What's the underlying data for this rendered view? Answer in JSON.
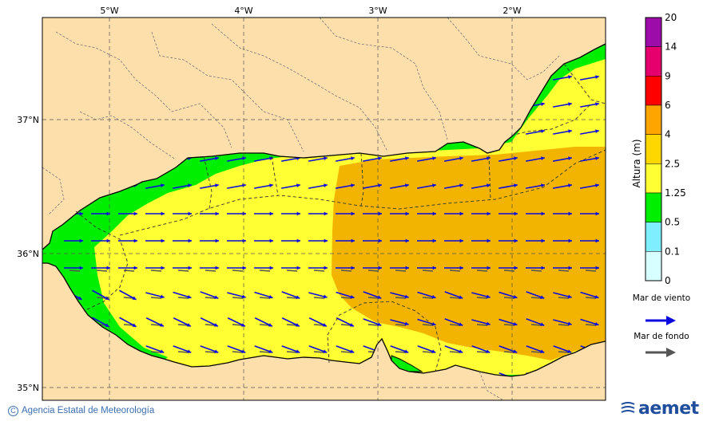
{
  "map": {
    "lon_labels": [
      "5°W",
      "4°W",
      "3°W",
      "2°W"
    ],
    "lat_labels": [
      "37°N",
      "36°N",
      "35°N"
    ],
    "wave_height_levels": [
      {
        "label": "1.25",
        "color": "#ffff33"
      },
      {
        "label": "2.5",
        "color": "#f2b400"
      }
    ]
  },
  "colorbar": {
    "title": "Altura (m)",
    "ticks": [
      "20",
      "14",
      "9",
      "6",
      "4",
      "2.5",
      "1.25",
      "0.5",
      "0.1",
      "0"
    ],
    "colors": [
      "#9c0ca8",
      "#e6006e",
      "#ff0000",
      "#ffa500",
      "#ffd700",
      "#ffff33",
      "#00ee00",
      "#7fefff",
      "#d8ffff"
    ]
  },
  "legend": {
    "wind_sea_label": "Mar de viento",
    "swell_label": "Mar de fondo",
    "wind_color": "#0a0ae0",
    "swell_color": "#555555"
  },
  "footer": {
    "credit": "Agencia Estatal de Meteorología",
    "logo_text": "aemet"
  },
  "colors": {
    "land": "#fddfac",
    "green": "#00ee00",
    "yellow": "#ffff33",
    "orange": "#f2b400"
  }
}
